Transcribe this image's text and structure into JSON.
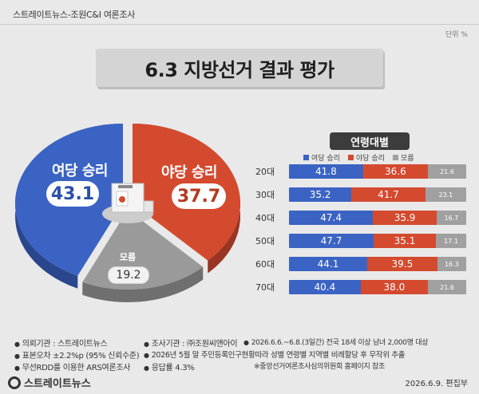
{
  "header": {
    "source": "스트레이트뉴스-조원C&I 여론조사",
    "unit": "단위 %"
  },
  "title": "6.3 지방선거 결과 평가",
  "chart_data": [
    {
      "type": "pie",
      "title": "",
      "categories": [
        "여당 승리",
        "야당 승리",
        "모름"
      ],
      "values": [
        43.1,
        37.7,
        19.2
      ],
      "colors": [
        "#3b63c4",
        "#d44a2f",
        "#9a9a9a"
      ]
    },
    {
      "type": "bar",
      "stacked": true,
      "orientation": "horizontal",
      "title": "연령대별",
      "categories": [
        "20대",
        "30대",
        "40대",
        "50대",
        "60대",
        "70대"
      ],
      "series": [
        {
          "name": "여당 승리",
          "color": "#3b63c4",
          "values": [
            41.8,
            35.2,
            47.4,
            47.7,
            44.1,
            40.4
          ]
        },
        {
          "name": "야당 승리",
          "color": "#d44a2f",
          "values": [
            36.6,
            41.7,
            35.9,
            35.1,
            39.5,
            38.0
          ]
        },
        {
          "name": "모름",
          "color": "#a0a0a0",
          "values": [
            21.6,
            23.1,
            16.7,
            17.1,
            16.3,
            21.6
          ]
        }
      ],
      "legend": "top"
    }
  ],
  "labels": {
    "ruling_win": "여당 승리",
    "ruling_value": "43.1",
    "opp_win": "야당 승리",
    "opp_value": "37.7",
    "unknown": "모름",
    "unknown_value": "19.2"
  },
  "age_values": [
    [
      "41.8",
      "36.6",
      "21.6"
    ],
    [
      "35.2",
      "41.7",
      "23.1"
    ],
    [
      "47.4",
      "35.9",
      "16.7"
    ],
    [
      "47.7",
      "35.1",
      "17.1"
    ],
    [
      "44.1",
      "39.5",
      "16.3"
    ],
    [
      "40.4",
      "38.0",
      "21.6"
    ]
  ],
  "footer": {
    "line1a": "의뢰기관 : 스트레이트뉴스",
    "line1b": "조사기관 : ㈜조원씨앤아이",
    "line1c": "2026.6.6.~6.8.(3일간) 전국 18세 이상 남녀 2,000명 대상",
    "line2a": "표본오차 ±2.2%p (95% 신뢰수준)",
    "line2b": "2026년 5월 말 주민등록인구현황따라 성별 연령별 지역별 비례할당 후 무작위 추출",
    "line3a": "무선RDD를 이용한 ARS여론조사",
    "line3b": "응답률 4.3%",
    "line3c": "※중앙선거여론조사심의위원회 홈페이지 참조",
    "date": "2026.6.9.  편집부",
    "brand": "스트레이트뉴스"
  }
}
